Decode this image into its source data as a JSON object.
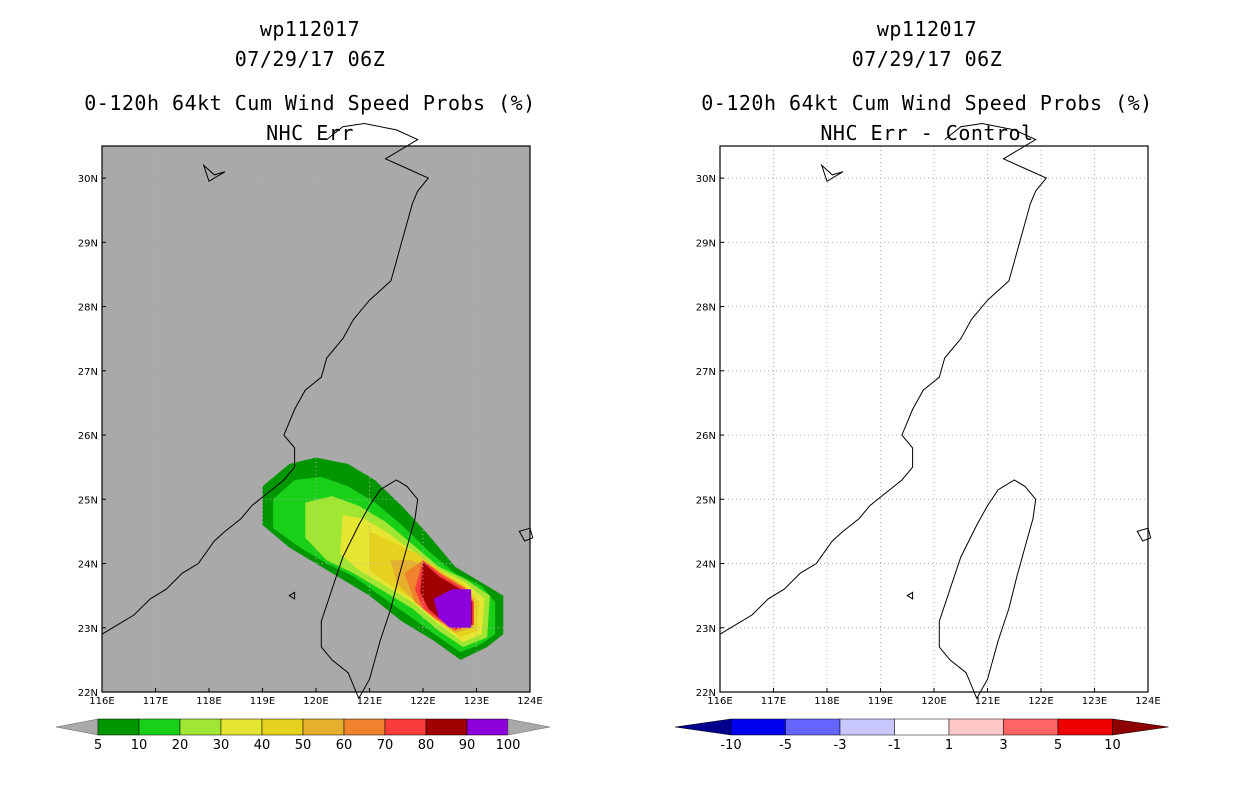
{
  "chart_data": [
    {
      "type": "heatmap",
      "storm_id": "wp112017",
      "datetime": "07/29/17 06Z",
      "title": "0-120h 64kt Cum Wind Speed Probs (%)",
      "subtitle": "NHC Err",
      "xlim": [
        116,
        124
      ],
      "ylim": [
        22,
        30.5
      ],
      "x_ticks": [
        "116E",
        "117E",
        "118E",
        "119E",
        "120E",
        "121E",
        "122E",
        "123E",
        "124E"
      ],
      "y_ticks": [
        "22N",
        "23N",
        "24N",
        "25N",
        "26N",
        "27N",
        "28N",
        "29N",
        "30N"
      ],
      "background": "#a9a9a9",
      "colorbar": {
        "labels": [
          "5",
          "10",
          "20",
          "30",
          "40",
          "50",
          "60",
          "70",
          "80",
          "90",
          "100"
        ],
        "colors": [
          "#009600",
          "#18d018",
          "#a0e632",
          "#e6e632",
          "#e6d21e",
          "#e6af2d",
          "#f0822d",
          "#fa3c3c",
          "#a00000",
          "#8c00dc"
        ]
      },
      "probability_regions": [
        {
          "level": "5-10",
          "color_index": 0,
          "points": [
            [
              119,
              25.2
            ],
            [
              119.5,
              25.55
            ],
            [
              120,
              25.65
            ],
            [
              120.6,
              25.55
            ],
            [
              121.1,
              25.3
            ],
            [
              121.6,
              24.9
            ],
            [
              122.1,
              24.45
            ],
            [
              122.6,
              23.95
            ],
            [
              123.1,
              23.7
            ],
            [
              123.5,
              23.5
            ],
            [
              123.5,
              22.9
            ],
            [
              123.2,
              22.7
            ],
            [
              122.7,
              22.5
            ],
            [
              122.2,
              22.8
            ],
            [
              121.6,
              23.1
            ],
            [
              121,
              23.5
            ],
            [
              120.5,
              23.75
            ],
            [
              120,
              24
            ],
            [
              119.5,
              24.25
            ],
            [
              119,
              24.6
            ]
          ]
        },
        {
          "level": "10-20",
          "color_index": 1,
          "points": [
            [
              119.2,
              25
            ],
            [
              119.6,
              25.3
            ],
            [
              120.1,
              25.35
            ],
            [
              120.6,
              25.2
            ],
            [
              121.1,
              24.95
            ],
            [
              121.6,
              24.6
            ],
            [
              122.1,
              24.2
            ],
            [
              122.6,
              23.85
            ],
            [
              123.1,
              23.65
            ],
            [
              123.35,
              23.4
            ],
            [
              123.35,
              22.9
            ],
            [
              123.1,
              22.75
            ],
            [
              122.7,
              22.62
            ],
            [
              122.3,
              22.85
            ],
            [
              121.8,
              23.15
            ],
            [
              121.2,
              23.5
            ],
            [
              120.7,
              23.8
            ],
            [
              120.2,
              24
            ],
            [
              119.7,
              24.25
            ],
            [
              119.2,
              24.55
            ]
          ]
        },
        {
          "level": "20-30",
          "color_index": 2,
          "points": [
            [
              119.8,
              24.95
            ],
            [
              120.3,
              25.05
            ],
            [
              120.8,
              24.9
            ],
            [
              121.3,
              24.65
            ],
            [
              121.8,
              24.3
            ],
            [
              122.3,
              23.95
            ],
            [
              122.8,
              23.75
            ],
            [
              123.25,
              23.5
            ],
            [
              123.2,
              22.85
            ],
            [
              122.75,
              22.7
            ],
            [
              122.3,
              22.95
            ],
            [
              121.8,
              23.3
            ],
            [
              121.2,
              23.6
            ],
            [
              120.7,
              23.85
            ],
            [
              120.2,
              24.05
            ],
            [
              119.8,
              24.4
            ]
          ]
        },
        {
          "level": "30-40",
          "color_index": 3,
          "points": [
            [
              120.5,
              24.75
            ],
            [
              120.9,
              24.7
            ],
            [
              121.3,
              24.5
            ],
            [
              121.8,
              24.2
            ],
            [
              122.3,
              23.9
            ],
            [
              122.8,
              23.7
            ],
            [
              123.15,
              23.45
            ],
            [
              123.1,
              22.9
            ],
            [
              122.75,
              22.78
            ],
            [
              122.3,
              23.05
            ],
            [
              121.8,
              23.4
            ],
            [
              121.2,
              23.7
            ],
            [
              120.8,
              23.9
            ],
            [
              120.45,
              24.15
            ]
          ]
        },
        {
          "level": "40-50",
          "color_index": 4,
          "points": [
            [
              121,
              24.5
            ],
            [
              121.4,
              24.35
            ],
            [
              121.9,
              24.15
            ],
            [
              122.4,
              23.85
            ],
            [
              122.8,
              23.65
            ],
            [
              123.05,
              23.4
            ],
            [
              123,
              22.95
            ],
            [
              122.7,
              22.85
            ],
            [
              122.3,
              23.1
            ],
            [
              121.8,
              23.45
            ],
            [
              121.4,
              23.65
            ],
            [
              121,
              23.9
            ]
          ]
        },
        {
          "level": "50-60",
          "color_index": 5,
          "points": [
            [
              121.4,
              24.05
            ],
            [
              121.8,
              24.05
            ],
            [
              122.2,
              23.85
            ],
            [
              122.6,
              23.65
            ],
            [
              122.95,
              23.45
            ],
            [
              122.95,
              23
            ],
            [
              122.6,
              22.92
            ],
            [
              122.2,
              23.15
            ],
            [
              121.8,
              23.45
            ],
            [
              121.5,
              23.7
            ]
          ]
        },
        {
          "level": "60-70",
          "color_index": 6,
          "points": [
            [
              121.65,
              23.85
            ],
            [
              122,
              24.05
            ],
            [
              122.4,
              23.82
            ],
            [
              122.8,
              23.62
            ],
            [
              122.95,
              23.4
            ],
            [
              122.95,
              23.05
            ],
            [
              122.6,
              22.95
            ],
            [
              122.2,
              23.15
            ],
            [
              121.85,
              23.4
            ]
          ]
        },
        {
          "level": "70-80",
          "color_index": 7,
          "points": [
            [
              121.85,
              23.6
            ],
            [
              122,
              24.05
            ],
            [
              122.35,
              23.82
            ],
            [
              122.75,
              23.62
            ],
            [
              122.95,
              23.4
            ],
            [
              122.95,
              23.05
            ],
            [
              122.6,
              22.97
            ],
            [
              122.25,
              23.15
            ],
            [
              122,
              23.3
            ]
          ]
        },
        {
          "level": "80-90",
          "color_index": 8,
          "points": [
            [
              121.95,
              23.55
            ],
            [
              122,
              24.02
            ],
            [
              122.3,
              23.8
            ],
            [
              122.7,
              23.6
            ],
            [
              122.92,
              23.4
            ],
            [
              122.92,
              23.05
            ],
            [
              122.6,
              23
            ],
            [
              122.3,
              23.15
            ],
            [
              122.1,
              23.3
            ]
          ]
        },
        {
          "level": "90-100",
          "color_index": 9,
          "points": [
            [
              122.2,
              23.45
            ],
            [
              122.55,
              23.6
            ],
            [
              122.9,
              23.6
            ],
            [
              122.9,
              23.0
            ],
            [
              122.5,
              23.0
            ],
            [
              122.3,
              23.15
            ]
          ]
        }
      ]
    },
    {
      "type": "heatmap",
      "storm_id": "wp112017",
      "datetime": "07/29/17 06Z",
      "title": "0-120h 64kt Cum Wind Speed Probs (%)",
      "subtitle": "NHC Err - Control",
      "xlim": [
        116,
        124
      ],
      "ylim": [
        22,
        30.5
      ],
      "x_ticks": [
        "116E",
        "117E",
        "118E",
        "119E",
        "120E",
        "121E",
        "122E",
        "123E",
        "124E"
      ],
      "y_ticks": [
        "22N",
        "23N",
        "24N",
        "25N",
        "26N",
        "27N",
        "28N",
        "29N",
        "30N"
      ],
      "background": "#ffffff",
      "colorbar": {
        "labels": [
          "-10",
          "-5",
          "-3",
          "-1",
          "1",
          "3",
          "5",
          "10"
        ],
        "colors": [
          "#00008c",
          "#0000f0",
          "#6464ff",
          "#c8c8ff",
          "#ffffff",
          "#ffc8c8",
          "#ff6464",
          "#f00000",
          "#8c0000"
        ]
      },
      "probability_regions": []
    }
  ],
  "map": {
    "coast_mainland": [
      [
        116,
        22.9
      ],
      [
        116.3,
        23.05
      ],
      [
        116.6,
        23.2
      ],
      [
        116.9,
        23.45
      ],
      [
        117.2,
        23.6
      ],
      [
        117.5,
        23.85
      ],
      [
        117.8,
        24
      ],
      [
        118.1,
        24.35
      ],
      [
        118.3,
        24.5
      ],
      [
        118.6,
        24.7
      ],
      [
        118.8,
        24.9
      ],
      [
        119.1,
        25.1
      ],
      [
        119.4,
        25.3
      ],
      [
        119.6,
        25.5
      ],
      [
        119.6,
        25.8
      ],
      [
        119.4,
        26
      ],
      [
        119.6,
        26.4
      ],
      [
        119.8,
        26.7
      ],
      [
        120.1,
        26.9
      ],
      [
        120.2,
        27.2
      ],
      [
        120.5,
        27.5
      ],
      [
        120.7,
        27.8
      ],
      [
        121,
        28.1
      ],
      [
        121.4,
        28.4
      ],
      [
        121.5,
        28.7
      ],
      [
        121.6,
        29
      ],
      [
        121.7,
        29.3
      ],
      [
        121.8,
        29.6
      ],
      [
        121.9,
        29.8
      ],
      [
        122.1,
        30
      ],
      [
        121.7,
        30.15
      ],
      [
        121.3,
        30.3
      ],
      [
        121.9,
        30.6
      ],
      [
        121.5,
        30.75
      ],
      [
        120.9,
        30.85
      ],
      [
        120.5,
        30.8
      ],
      [
        120.2,
        30.6
      ]
    ],
    "taiwan": [
      [
        121.9,
        25.0
      ],
      [
        121.7,
        25.2
      ],
      [
        121.5,
        25.3
      ],
      [
        121.2,
        25.15
      ],
      [
        121,
        24.9
      ],
      [
        120.8,
        24.6
      ],
      [
        120.5,
        24.1
      ],
      [
        120.3,
        23.6
      ],
      [
        120.1,
        23.1
      ],
      [
        120.1,
        22.7
      ],
      [
        120.3,
        22.5
      ],
      [
        120.6,
        22.3
      ],
      [
        120.8,
        21.9
      ],
      [
        121,
        22.2
      ],
      [
        121.2,
        22.8
      ],
      [
        121.4,
        23.3
      ],
      [
        121.55,
        23.8
      ],
      [
        121.75,
        24.4
      ],
      [
        121.85,
        24.7
      ]
    ],
    "hainan_hint": [
      [
        117.9,
        30.2
      ],
      [
        118.1,
        30.05
      ],
      [
        118.3,
        30.1
      ],
      [
        118.0,
        29.95
      ]
    ],
    "island_east": [
      [
        123.8,
        24.5
      ],
      [
        124,
        24.55
      ],
      [
        124.05,
        24.4
      ],
      [
        123.9,
        24.35
      ]
    ],
    "island_small": [
      [
        119.5,
        23.5
      ],
      [
        119.6,
        23.55
      ],
      [
        119.6,
        23.45
      ]
    ]
  }
}
